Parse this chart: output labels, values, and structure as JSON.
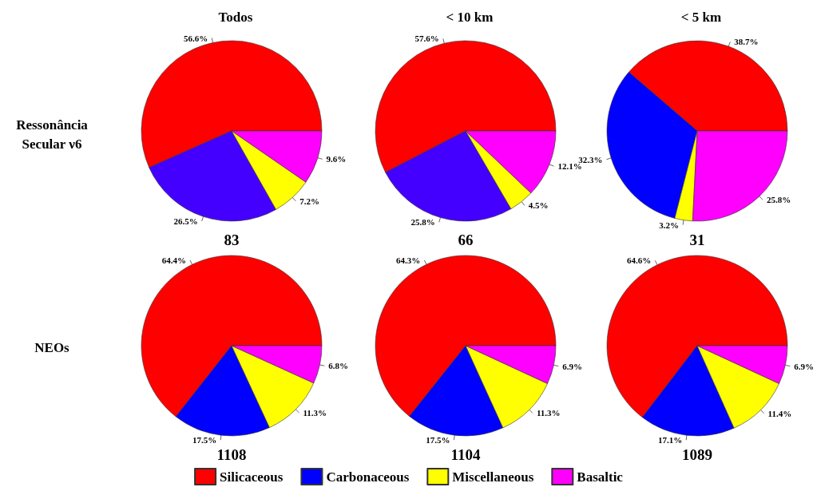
{
  "chart_data": [
    {
      "type": "pie",
      "title": "Todos",
      "ylabel": "Ressonância\nSecular ν6",
      "xlabel": "83",
      "categories": [
        null,
        null,
        null,
        null
      ],
      "values": [
        56.6,
        26.5,
        7.2,
        9.6
      ],
      "value_labels": [
        "56.6%",
        "26.5%",
        "7.2%",
        "9.6%"
      ],
      "colors": [
        "#ff0000",
        "#4400ff",
        "#ffff00",
        "#ff00ff"
      ]
    },
    {
      "type": "pie",
      "title": "< 10 km",
      "xlabel": "66",
      "categories": [
        null,
        null,
        null,
        null
      ],
      "values": [
        57.6,
        25.8,
        4.5,
        12.1
      ],
      "value_labels": [
        "57.6%",
        "25.8%",
        "4.5%",
        "12.1%"
      ],
      "colors": [
        "#ff0000",
        "#4400ff",
        "#ffff00",
        "#ff00ff"
      ]
    },
    {
      "type": "pie",
      "title": "< 5 km",
      "xlabel": "31",
      "categories": [
        null,
        null,
        null,
        null
      ],
      "values": [
        38.7,
        32.3,
        3.2,
        25.8
      ],
      "value_labels": [
        "38.7%",
        "32.3%",
        "3.2%",
        "25.8%"
      ],
      "colors": [
        "#ff0000",
        "#0000ff",
        "#ffff00",
        "#ff00ff"
      ]
    },
    {
      "type": "pie",
      "ylabel": "NEOs",
      "xlabel": "1108",
      "categories": [
        null,
        null,
        null,
        null
      ],
      "values": [
        64.4,
        17.5,
        11.3,
        6.8
      ],
      "value_labels": [
        "64.4%",
        "17.5%",
        "11.3%",
        "6.8%"
      ],
      "colors": [
        "#ff0000",
        "#0000ff",
        "#ffff00",
        "#ff00ff"
      ]
    },
    {
      "type": "pie",
      "xlabel": "1104",
      "legend": "bottom",
      "categories": [
        "Silicaceous",
        "Carbonaceous",
        "Miscellaneous",
        "Basaltic"
      ],
      "values": [
        64.3,
        17.5,
        11.3,
        6.9
      ],
      "value_labels": [
        "64.3%",
        "17.5%",
        "11.3%",
        "6.9%"
      ],
      "colors": [
        "#ff0000",
        "#0000ff",
        "#ffff00",
        "#ff00ff"
      ]
    },
    {
      "type": "pie",
      "xlabel": "1089",
      "categories": [
        null,
        null,
        null,
        null
      ],
      "values": [
        64.6,
        17.1,
        11.4,
        6.9
      ],
      "value_labels": [
        "64.6%",
        "17.1%",
        "11.4%",
        "6.9%"
      ],
      "colors": [
        "#ff0000",
        "#0000ff",
        "#ffff00",
        "#ff00ff"
      ]
    }
  ]
}
